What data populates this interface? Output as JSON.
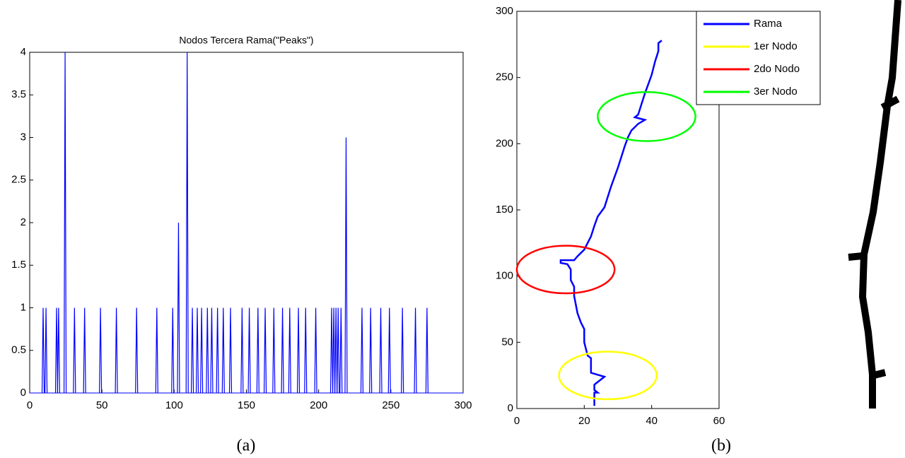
{
  "chart_data": [
    {
      "type": "spikes",
      "title": "Nodos Tercera Rama(\"Peaks\")",
      "caption": "(a)",
      "color": "#0000ff",
      "x": [
        9.3,
        11.3,
        18.6,
        20,
        24.5,
        31,
        38,
        49,
        60,
        74,
        88,
        99,
        103,
        109,
        112.6,
        116,
        119,
        123,
        126,
        130,
        134,
        139,
        147,
        152,
        158,
        163,
        169,
        175,
        180,
        186,
        191,
        198,
        209,
        210.5,
        212,
        213.5,
        215.5,
        219,
        230,
        236,
        243,
        249,
        258,
        267,
        275
      ],
      "values": [
        1,
        1,
        1,
        1,
        4,
        1,
        1,
        1,
        1,
        1,
        1,
        1,
        2,
        4,
        1,
        1,
        1,
        1,
        1,
        1,
        1,
        1,
        1,
        1,
        1,
        1,
        1,
        1,
        1,
        1,
        1,
        1,
        1,
        1,
        1,
        1,
        1,
        3,
        1,
        1,
        1,
        1,
        1,
        1,
        1
      ],
      "xlim": [
        0,
        300
      ],
      "xticks": [
        0,
        50,
        100,
        150,
        200,
        250,
        300
      ],
      "ylim": [
        0,
        4
      ],
      "yticks": [
        0,
        0.5,
        1,
        1.5,
        2,
        2.5,
        3,
        3.5,
        4
      ]
    },
    {
      "type": "line",
      "caption": "(b)",
      "legend": "upper right",
      "xlim": [
        0,
        60
      ],
      "xticks": [
        0,
        20,
        40,
        60
      ],
      "ylim": [
        0,
        300
      ],
      "yticks": [
        0,
        50,
        100,
        150,
        200,
        250,
        300
      ],
      "series": [
        {
          "name": "Rama",
          "color": "#0000ff",
          "x": [
            23,
            23,
            24,
            23,
            23,
            26,
            22,
            22,
            21,
            20,
            20,
            19,
            18,
            17,
            17,
            16,
            16,
            15,
            13,
            13,
            17,
            18,
            20,
            21,
            22,
            23,
            24,
            26,
            27,
            28,
            29,
            30,
            31,
            32,
            33,
            34,
            36,
            38,
            35,
            36,
            37,
            38,
            39,
            40,
            41,
            42,
            42,
            43
          ],
          "values": [
            2,
            12,
            12,
            14,
            18,
            24,
            27,
            38,
            40,
            50,
            60,
            65,
            72,
            85,
            92,
            97,
            105,
            109,
            110,
            112,
            112,
            115,
            120,
            125,
            130,
            138,
            145,
            152,
            160,
            168,
            175,
            182,
            190,
            198,
            205,
            210,
            215,
            218,
            220,
            222,
            230,
            238,
            245,
            252,
            262,
            270,
            276,
            278
          ]
        },
        {
          "name": "1er Nodo",
          "color": "#ffff00",
          "shape": "ellipse",
          "x": [
            27
          ],
          "values": [
            25
          ],
          "rx": 14.5,
          "ry": 18
        },
        {
          "name": "2do Nodo",
          "color": "#ff0000",
          "shape": "ellipse",
          "x": [
            14.5
          ],
          "values": [
            105
          ],
          "rx": 14.5,
          "ry": 18
        },
        {
          "name": "3er Nodo",
          "color": "#00ff00",
          "shape": "ellipse",
          "x": [
            38.5
          ],
          "values": [
            220.5
          ],
          "rx": 14.5,
          "ry": 18.5
        }
      ]
    }
  ]
}
